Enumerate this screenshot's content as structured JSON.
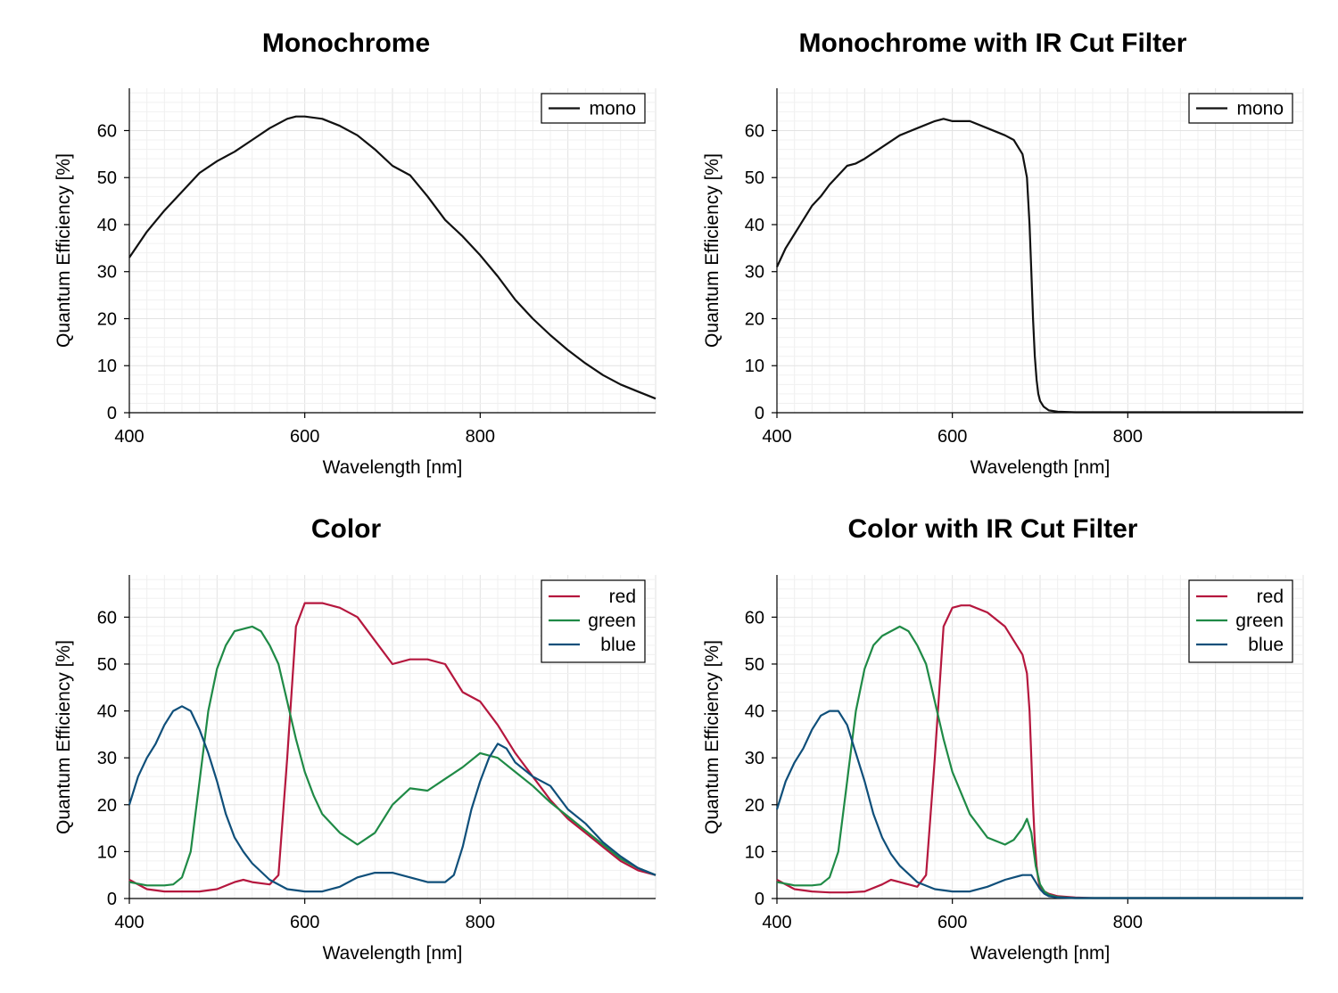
{
  "colors": {
    "mono": "#111111",
    "red": "#b5173e",
    "green": "#1f8a46",
    "blue": "#0f4f7a"
  },
  "chart_data": [
    {
      "type": "line",
      "title": "Monochrome",
      "xlabel": "Wavelength [nm]",
      "ylabel": "Quantum Efficiency [%]",
      "xlim": [
        400,
        1000
      ],
      "ylim": [
        0,
        69
      ],
      "xticks": [
        400,
        600,
        800
      ],
      "yticks": [
        0,
        10,
        20,
        30,
        40,
        50,
        60
      ],
      "legend_position": "top-right",
      "series": [
        {
          "name": "mono",
          "color_key": "mono",
          "x": [
            400,
            420,
            440,
            460,
            480,
            500,
            520,
            540,
            560,
            580,
            590,
            600,
            620,
            640,
            660,
            680,
            700,
            720,
            740,
            760,
            780,
            800,
            820,
            840,
            860,
            880,
            900,
            920,
            940,
            960,
            980,
            1000
          ],
          "y": [
            33,
            38.5,
            43,
            47,
            51,
            53.5,
            55.5,
            58,
            60.5,
            62.5,
            63,
            63,
            62.5,
            61,
            59,
            56,
            52.5,
            50.5,
            46,
            41,
            37.5,
            33.5,
            29,
            24,
            20,
            16.5,
            13.3,
            10.5,
            8,
            6,
            4.5,
            3
          ]
        }
      ]
    },
    {
      "type": "line",
      "title": "Monochrome with IR Cut Filter",
      "xlabel": "Wavelength [nm]",
      "ylabel": "Quantum Efficiency [%]",
      "xlim": [
        400,
        1000
      ],
      "ylim": [
        0,
        69
      ],
      "xticks": [
        400,
        600,
        800
      ],
      "yticks": [
        0,
        10,
        20,
        30,
        40,
        50,
        60
      ],
      "legend_position": "top-right",
      "series": [
        {
          "name": "mono",
          "color_key": "mono",
          "x": [
            400,
            410,
            420,
            430,
            440,
            450,
            460,
            470,
            480,
            490,
            500,
            520,
            540,
            560,
            580,
            590,
            600,
            620,
            640,
            660,
            670,
            680,
            685,
            688,
            690,
            692,
            694,
            696,
            698,
            700,
            704,
            710,
            720,
            740,
            760,
            800,
            1000
          ],
          "y": [
            31,
            35,
            38,
            41,
            44,
            46,
            48.5,
            50.5,
            52.5,
            53,
            54,
            56.5,
            59,
            60.5,
            62,
            62.5,
            62,
            62,
            60.5,
            59,
            58,
            55,
            50,
            40,
            30,
            20,
            12,
            7,
            4,
            2.5,
            1.3,
            0.5,
            0.2,
            0.1,
            0.1,
            0.1,
            0.1
          ]
        }
      ]
    },
    {
      "type": "line",
      "title": "Color",
      "xlabel": "Wavelength [nm]",
      "ylabel": "Quantum Efficiency [%]",
      "xlim": [
        400,
        1000
      ],
      "ylim": [
        0,
        69
      ],
      "xticks": [
        400,
        600,
        800
      ],
      "yticks": [
        0,
        10,
        20,
        30,
        40,
        50,
        60
      ],
      "legend_position": "top-right",
      "series": [
        {
          "name": "red",
          "color_key": "red",
          "x": [
            400,
            420,
            440,
            460,
            480,
            500,
            520,
            530,
            540,
            560,
            570,
            580,
            590,
            600,
            610,
            620,
            640,
            660,
            680,
            700,
            720,
            740,
            760,
            780,
            800,
            820,
            840,
            860,
            880,
            900,
            920,
            940,
            960,
            980,
            1000
          ],
          "y": [
            4,
            2,
            1.5,
            1.5,
            1.5,
            2,
            3.5,
            4,
            3.5,
            3,
            5,
            30,
            58,
            63,
            63,
            63,
            62,
            60,
            55,
            50,
            51,
            51,
            50,
            44,
            42,
            37,
            31,
            26,
            21,
            17,
            14,
            11,
            8,
            6,
            5
          ]
        },
        {
          "name": "green",
          "color_key": "green",
          "x": [
            400,
            420,
            440,
            450,
            460,
            470,
            480,
            490,
            500,
            510,
            520,
            540,
            550,
            560,
            570,
            580,
            590,
            600,
            610,
            620,
            640,
            660,
            680,
            700,
            720,
            740,
            760,
            780,
            800,
            820,
            840,
            860,
            880,
            900,
            920,
            940,
            960,
            980,
            1000
          ],
          "y": [
            3.5,
            2.8,
            2.8,
            3,
            4.5,
            10,
            25,
            40,
            49,
            54,
            57,
            58,
            57,
            54,
            50,
            42,
            34,
            27,
            22,
            18,
            14,
            11.5,
            14,
            20,
            23.5,
            23,
            25.5,
            28,
            31,
            30,
            27,
            24,
            20.5,
            17.5,
            14.5,
            11.5,
            8.5,
            6.5,
            5
          ]
        },
        {
          "name": "blue",
          "color_key": "blue",
          "x": [
            400,
            410,
            420,
            430,
            440,
            450,
            460,
            470,
            480,
            490,
            500,
            510,
            520,
            530,
            540,
            560,
            580,
            600,
            620,
            640,
            660,
            680,
            700,
            720,
            740,
            760,
            770,
            780,
            790,
            800,
            810,
            820,
            830,
            840,
            860,
            880,
            900,
            920,
            940,
            960,
            980,
            1000
          ],
          "y": [
            20,
            26,
            30,
            33,
            37,
            40,
            41,
            40,
            36,
            31,
            25,
            18,
            13,
            10,
            7.5,
            4,
            2,
            1.5,
            1.5,
            2.5,
            4.5,
            5.5,
            5.5,
            4.5,
            3.5,
            3.5,
            5,
            11,
            19,
            25,
            30,
            33,
            32,
            29,
            26,
            24,
            19,
            16,
            12,
            9,
            6.5,
            5
          ]
        }
      ]
    },
    {
      "type": "line",
      "title": "Color with IR Cut Filter",
      "xlabel": "Wavelength [nm]",
      "ylabel": "Quantum Efficiency [%]",
      "xlim": [
        400,
        1000
      ],
      "ylim": [
        0,
        69
      ],
      "xticks": [
        400,
        600,
        800
      ],
      "yticks": [
        0,
        10,
        20,
        30,
        40,
        50,
        60
      ],
      "legend_position": "top-right",
      "series": [
        {
          "name": "red",
          "color_key": "red",
          "x": [
            400,
            420,
            440,
            460,
            480,
            500,
            520,
            530,
            540,
            560,
            570,
            580,
            590,
            600,
            610,
            620,
            640,
            660,
            670,
            680,
            685,
            688,
            690,
            692,
            694,
            696,
            698,
            700,
            705,
            710,
            720,
            740,
            760,
            800,
            1000
          ],
          "y": [
            4,
            2,
            1.5,
            1.3,
            1.3,
            1.5,
            3,
            4,
            3.5,
            2.5,
            5,
            30,
            58,
            62,
            62.5,
            62.5,
            61,
            58,
            55,
            52,
            48,
            40,
            30,
            20,
            12,
            7,
            4,
            2.5,
            1.5,
            1,
            0.5,
            0.2,
            0.1,
            0.1,
            0.1
          ]
        },
        {
          "name": "green",
          "color_key": "green",
          "x": [
            400,
            420,
            440,
            450,
            460,
            470,
            480,
            490,
            500,
            510,
            520,
            540,
            550,
            560,
            570,
            580,
            590,
            600,
            620,
            640,
            660,
            670,
            680,
            685,
            690,
            695,
            700,
            705,
            710,
            720,
            740,
            800,
            1000
          ],
          "y": [
            3.5,
            2.8,
            2.8,
            3,
            4.5,
            10,
            25,
            40,
            49,
            54,
            56,
            58,
            57,
            54,
            50,
            42,
            34,
            27,
            18,
            13,
            11.5,
            12.5,
            15,
            17,
            14,
            7,
            3,
            1.5,
            0.8,
            0.3,
            0.1,
            0.1,
            0.1
          ]
        },
        {
          "name": "blue",
          "color_key": "blue",
          "x": [
            400,
            410,
            420,
            430,
            440,
            450,
            460,
            470,
            480,
            490,
            500,
            510,
            520,
            530,
            540,
            560,
            580,
            600,
            620,
            640,
            660,
            680,
            690,
            695,
            700,
            705,
            710,
            720,
            740,
            800,
            1000
          ],
          "y": [
            19,
            25,
            29,
            32,
            36,
            39,
            40,
            40,
            37,
            31,
            25,
            18,
            13,
            9.5,
            7,
            3.5,
            2,
            1.5,
            1.5,
            2.5,
            4,
            5,
            5,
            3.5,
            2,
            1,
            0.5,
            0.2,
            0.1,
            0.1,
            0.1
          ]
        }
      ]
    }
  ]
}
